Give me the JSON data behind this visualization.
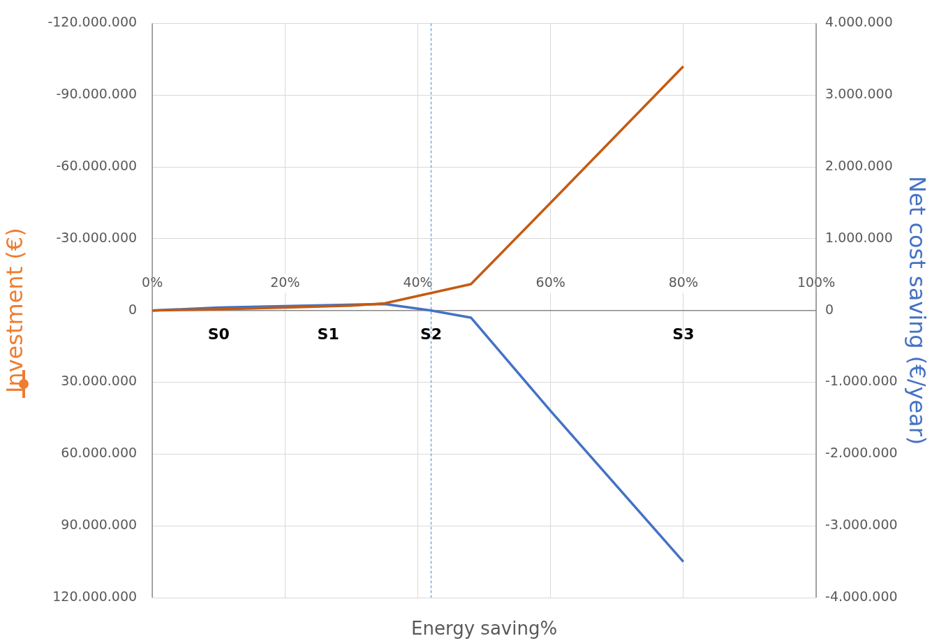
{
  "chart_data": {
    "type": "line",
    "xlabel": "Energy saving%",
    "ylabel": "Investment (€)",
    "y2label": "Net cost saving (€/year)",
    "xlim": [
      0,
      100
    ],
    "xticks": [
      {
        "value": 0,
        "label": "0%"
      },
      {
        "value": 20,
        "label": "20%"
      },
      {
        "value": 40,
        "label": "40%"
      },
      {
        "value": 60,
        "label": "60%"
      },
      {
        "value": 80,
        "label": "80%"
      },
      {
        "value": 100,
        "label": "100%"
      }
    ],
    "ylim": [
      120000000,
      -120000000
    ],
    "yticks": [
      {
        "value": -120000000,
        "label": "-120.000.000"
      },
      {
        "value": -90000000,
        "label": "-90.000.000"
      },
      {
        "value": -60000000,
        "label": "-60.000.000"
      },
      {
        "value": -30000000,
        "label": "-30.000.000"
      },
      {
        "value": 0,
        "label": "0"
      },
      {
        "value": 30000000,
        "label": "30.000.000"
      },
      {
        "value": 60000000,
        "label": "60.000.000"
      },
      {
        "value": 90000000,
        "label": "90.000.000"
      },
      {
        "value": 120000000,
        "label": "120.000.000"
      }
    ],
    "y2lim": [
      -4000000,
      4000000
    ],
    "y2ticks": [
      {
        "value": 4000000,
        "label": "4.000.000"
      },
      {
        "value": 3000000,
        "label": "3.000.000"
      },
      {
        "value": 2000000,
        "label": "2.000.000"
      },
      {
        "value": 1000000,
        "label": "1.000.000"
      },
      {
        "value": 0,
        "label": "0"
      },
      {
        "value": -1000000,
        "label": "-1.000.000"
      },
      {
        "value": -2000000,
        "label": "-2.000.000"
      },
      {
        "value": -3000000,
        "label": "-3.000.000"
      },
      {
        "value": -4000000,
        "label": "-4.000.000"
      }
    ],
    "series": [
      {
        "color": "#c55a11",
        "x": [
          0,
          10,
          20,
          30,
          35,
          48,
          60,
          80
        ],
        "values": [
          0,
          -500000,
          -1200000,
          -2000000,
          -3000000,
          -11000000,
          -45000000,
          -102000000
        ]
      },
      {
        "color": "#4472c4",
        "axis": "y2",
        "x": [
          0,
          10,
          35,
          42,
          48,
          60,
          80
        ],
        "values": [
          0,
          40000,
          90000,
          0,
          -100000,
          -1400000,
          -3500000
        ]
      }
    ],
    "ref_lines": [
      {
        "axis": "x",
        "value": 42,
        "color": "#5b9bd5",
        "line_style": "dashed"
      }
    ],
    "annotations": [
      "S0",
      "S1",
      "S2",
      "S3"
    ],
    "grid": true,
    "legend": false,
    "marker": "none",
    "line_style": "solid"
  }
}
